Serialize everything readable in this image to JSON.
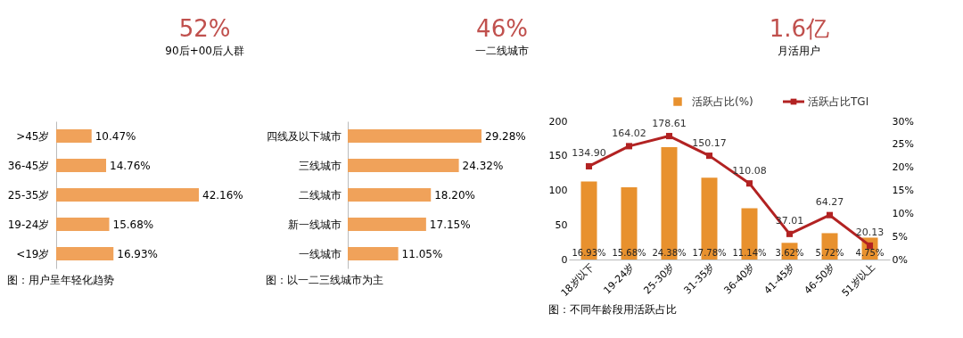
{
  "chart_data": [
    {
      "type": "other",
      "annotations": [
        "52%",
        "90后+00后人群",
        "46%",
        "一二线城市",
        "1.6亿",
        "月活用户"
      ]
    },
    {
      "type": "bar",
      "orientation": "horizontal",
      "title": "图：用户呈年轻化趋势",
      "categories": [
        ">45岁",
        "36-45岁",
        "25-35岁",
        "19-24岁",
        "<19岁"
      ],
      "values": [
        10.47,
        14.76,
        42.16,
        15.68,
        16.93
      ],
      "value_labels": [
        "10.47%",
        "14.76%",
        "42.16%",
        "15.68%",
        "16.93%"
      ],
      "color": "#f0a25a"
    },
    {
      "type": "bar",
      "orientation": "horizontal",
      "title": "图：以一二三线城市为主",
      "categories": [
        "四线及以下城市",
        "三线城市",
        "二线城市",
        "新一线城市",
        "一线城市"
      ],
      "values": [
        29.28,
        24.32,
        18.2,
        17.15,
        11.05
      ],
      "value_labels": [
        "29.28%",
        "24.32%",
        "18.20%",
        "17.15%",
        "11.05%"
      ],
      "color": "#f0a25a"
    },
    {
      "type": "bar",
      "title": "图：不同年龄段用活跃占比",
      "categories": [
        "18岁以下",
        "19-24岁",
        "25-30岁",
        "31-35岁",
        "36-40岁",
        "41-45岁",
        "46-50岁",
        "51岁以上"
      ],
      "ylim": [
        0,
        200
      ],
      "yticks": [
        0,
        50,
        100,
        150,
        200
      ],
      "y2lim": [
        0,
        30
      ],
      "y2ticks": [
        {
          "value": 0,
          "label": "0%"
        },
        {
          "value": 5,
          "label": "5%"
        },
        {
          "value": 10,
          "label": "10%"
        },
        {
          "value": 15,
          "label": "15%"
        },
        {
          "value": 20,
          "label": "20%"
        },
        {
          "value": 25,
          "label": "25%"
        },
        {
          "value": 30,
          "label": "30%"
        }
      ],
      "legend": "top right",
      "series": [
        {
          "name": "活跃占比(%)",
          "type": "bar",
          "axis": "y2",
          "color": "#e8912e",
          "values": [
            16.93,
            15.68,
            24.38,
            17.78,
            11.14,
            3.62,
            5.72,
            4.75
          ],
          "value_labels": [
            "16.93%",
            "15.68%",
            "24.38%",
            "17.78%",
            "11.14%",
            "3.62%",
            "5.72%",
            "4.75%"
          ]
        },
        {
          "name": "活跃占比TGI",
          "type": "line",
          "axis": "y",
          "marker": "square",
          "color": "#b22222",
          "values": [
            134.9,
            164.02,
            178.61,
            150.17,
            110.08,
            37.01,
            64.27,
            20.13
          ],
          "value_labels": [
            "134.90",
            "164.02",
            "178.61",
            "150.17",
            "110.08",
            "37.01",
            "64.27",
            "20.13"
          ]
        }
      ]
    }
  ]
}
